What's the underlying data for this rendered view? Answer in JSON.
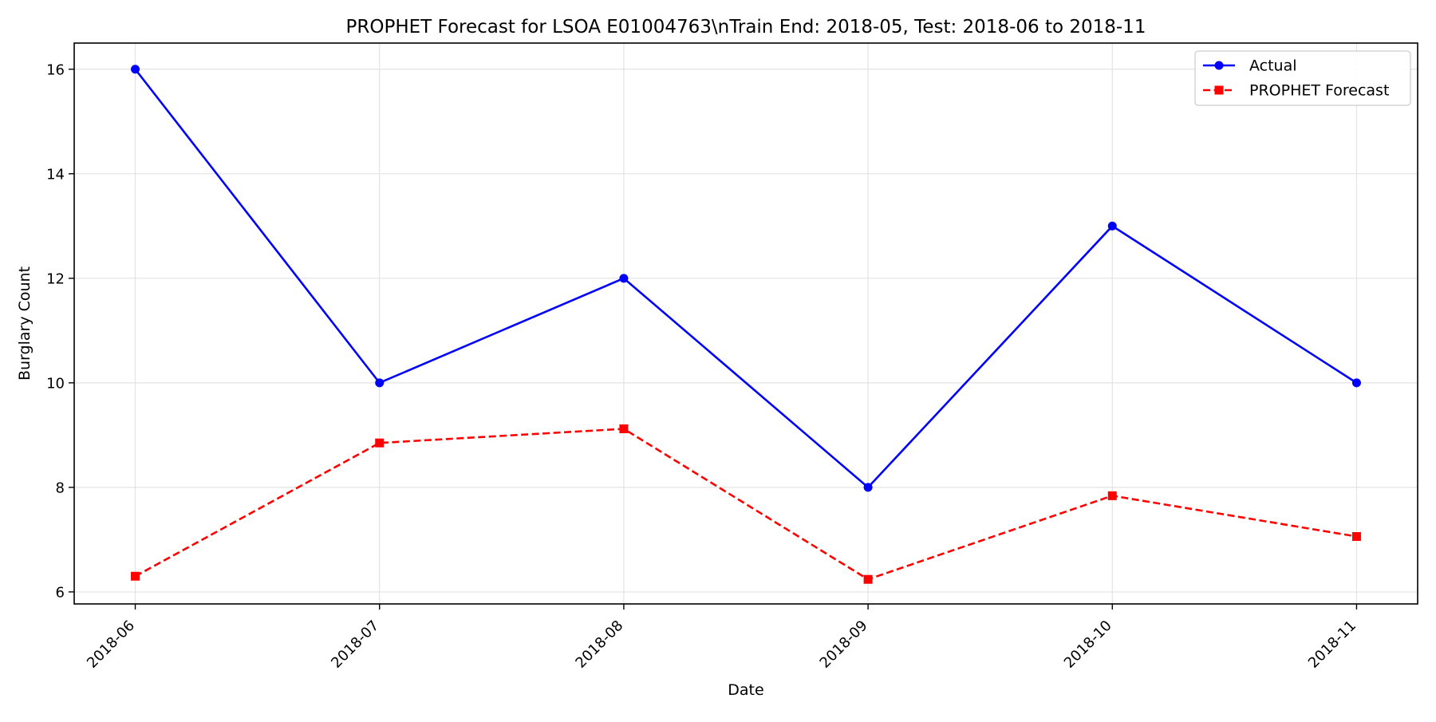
{
  "chart_data": {
    "type": "line",
    "title": "PROPHET Forecast for LSOA E01004763\\nTrain End: 2018-05, Test: 2018-06 to 2018-11",
    "xlabel": "Date",
    "ylabel": "Burglary Count",
    "x": [
      "2018-06",
      "2018-07",
      "2018-08",
      "2018-09",
      "2018-10",
      "2018-11"
    ],
    "ylim": [
      5.77,
      16.5
    ],
    "yticks": [
      6,
      8,
      10,
      12,
      14,
      16
    ],
    "grid": true,
    "legend_position": "upper-right",
    "series": [
      {
        "name": "Actual",
        "values": [
          16,
          10,
          12,
          8,
          13,
          10
        ],
        "color": "#0000ff",
        "line_style": "solid",
        "marker": "circle"
      },
      {
        "name": "PROPHET Forecast",
        "values": [
          6.3,
          8.85,
          9.12,
          6.24,
          7.84,
          7.06
        ],
        "color": "#ff0000",
        "line_style": "dashed",
        "marker": "square"
      }
    ]
  }
}
